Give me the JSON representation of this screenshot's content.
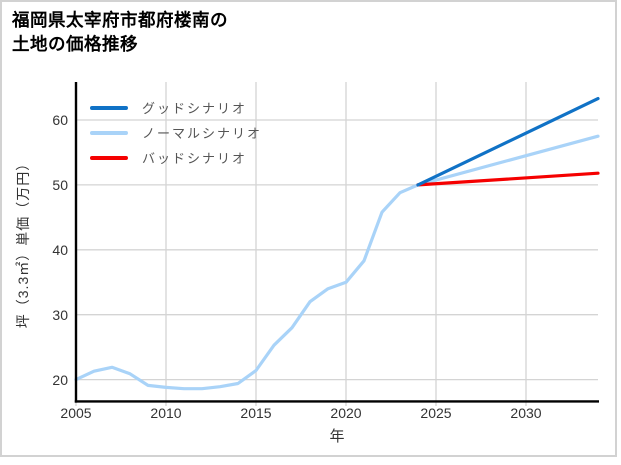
{
  "title": {
    "line1": "福岡県太宰府市都府楼南の",
    "line2": "土地の価格推移"
  },
  "colors": {
    "good": "#1072c6",
    "normal": "#a9d3f8",
    "bad": "#f50000",
    "grid": "#d4d4d4",
    "spine": "#000000",
    "tick_text": "#333333",
    "legend_text": "#555555",
    "border": "#d2d2d2",
    "background": "#ffffff"
  },
  "chart_data": {
    "type": "line",
    "title": "福岡県太宰府市都府楼南の土地の価格推移",
    "xlabel": "年",
    "ylabel": "坪（3.3㎡）単価（万円）",
    "x_ticks": [
      2005,
      2010,
      2015,
      2020,
      2025,
      2030
    ],
    "x_tick_labels": [
      "2005",
      "2010",
      "2015",
      "2020",
      "2025",
      "2030"
    ],
    "y_ticks": [
      20,
      30,
      40,
      50,
      60
    ],
    "y_tick_labels": [
      "20",
      "30",
      "40",
      "50",
      "60"
    ],
    "xlim": [
      2005,
      2034
    ],
    "ylim": [
      16.5,
      66
    ],
    "grid": true,
    "legend_position": "top-left-inside",
    "series": [
      {
        "id": "good",
        "name": "グッドシナリオ",
        "color": "#1072c6",
        "x": [
          2024,
          2034
        ],
        "y": [
          50.0,
          63.3
        ]
      },
      {
        "id": "normal",
        "name": "ノーマルシナリオ",
        "color": "#a9d3f8",
        "x": [
          2005,
          2006,
          2007,
          2008,
          2009,
          2010,
          2011,
          2012,
          2013,
          2014,
          2015,
          2016,
          2017,
          2018,
          2019,
          2020,
          2021,
          2022,
          2023,
          2024,
          2034
        ],
        "y": [
          20.0,
          21.3,
          21.9,
          20.9,
          19.1,
          18.8,
          18.6,
          18.6,
          18.9,
          19.4,
          21.4,
          25.3,
          28.0,
          32.0,
          34.0,
          35.0,
          38.3,
          45.8,
          48.8,
          50.0,
          57.5
        ]
      },
      {
        "id": "bad",
        "name": "バッドシナリオ",
        "color": "#f50000",
        "x": [
          2024,
          2034
        ],
        "y": [
          50.0,
          51.8
        ]
      }
    ]
  }
}
